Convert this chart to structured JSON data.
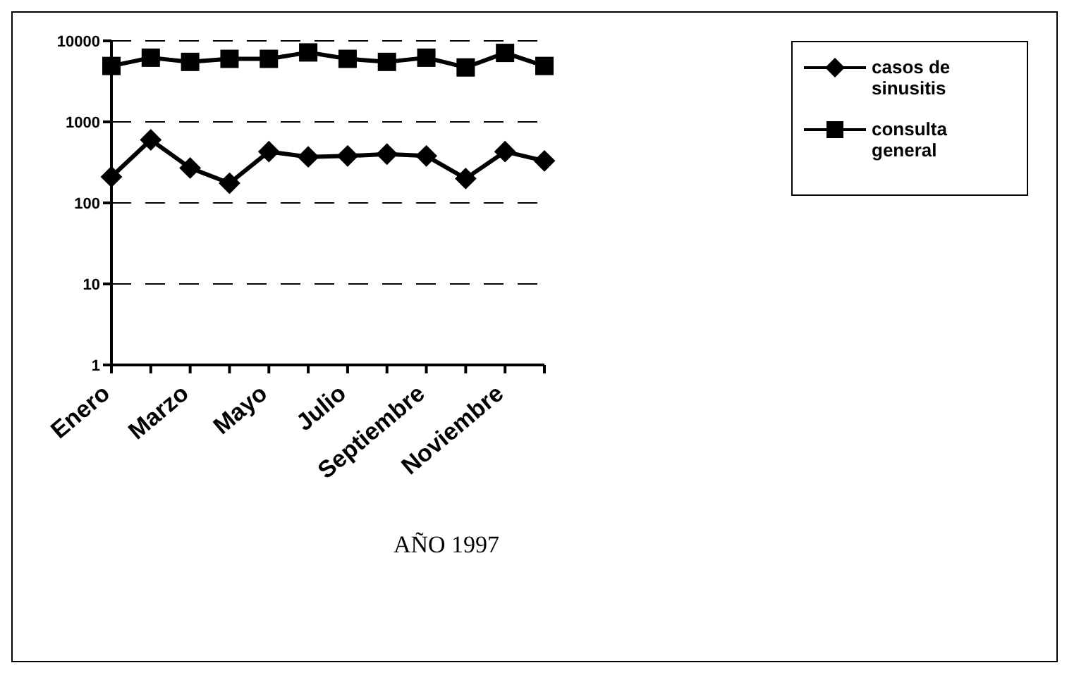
{
  "chart_data": {
    "type": "line",
    "xlabel": "AÑO 1997",
    "categories": [
      "Enero",
      null,
      "Marzo",
      null,
      "Mayo",
      null,
      "Julio",
      null,
      "Septiembre",
      null,
      "Noviembre",
      null
    ],
    "series": [
      {
        "name": "casos de sinusitis",
        "color": "#000000",
        "marker": "diamond",
        "values": [
          210,
          600,
          270,
          175,
          430,
          370,
          380,
          400,
          380,
          200,
          430,
          330
        ]
      },
      {
        "name": "consulta general",
        "color": "#000000",
        "marker": "square",
        "values": [
          4900,
          6200,
          5500,
          6000,
          6000,
          7200,
          6000,
          5500,
          6200,
          4700,
          7100,
          4900
        ]
      }
    ],
    "log": "y",
    "ylim": [
      1,
      10000
    ],
    "yticks": [
      1,
      10,
      100,
      1000,
      10000
    ],
    "grid": "y",
    "legend": "right",
    "line_style": "solid"
  }
}
